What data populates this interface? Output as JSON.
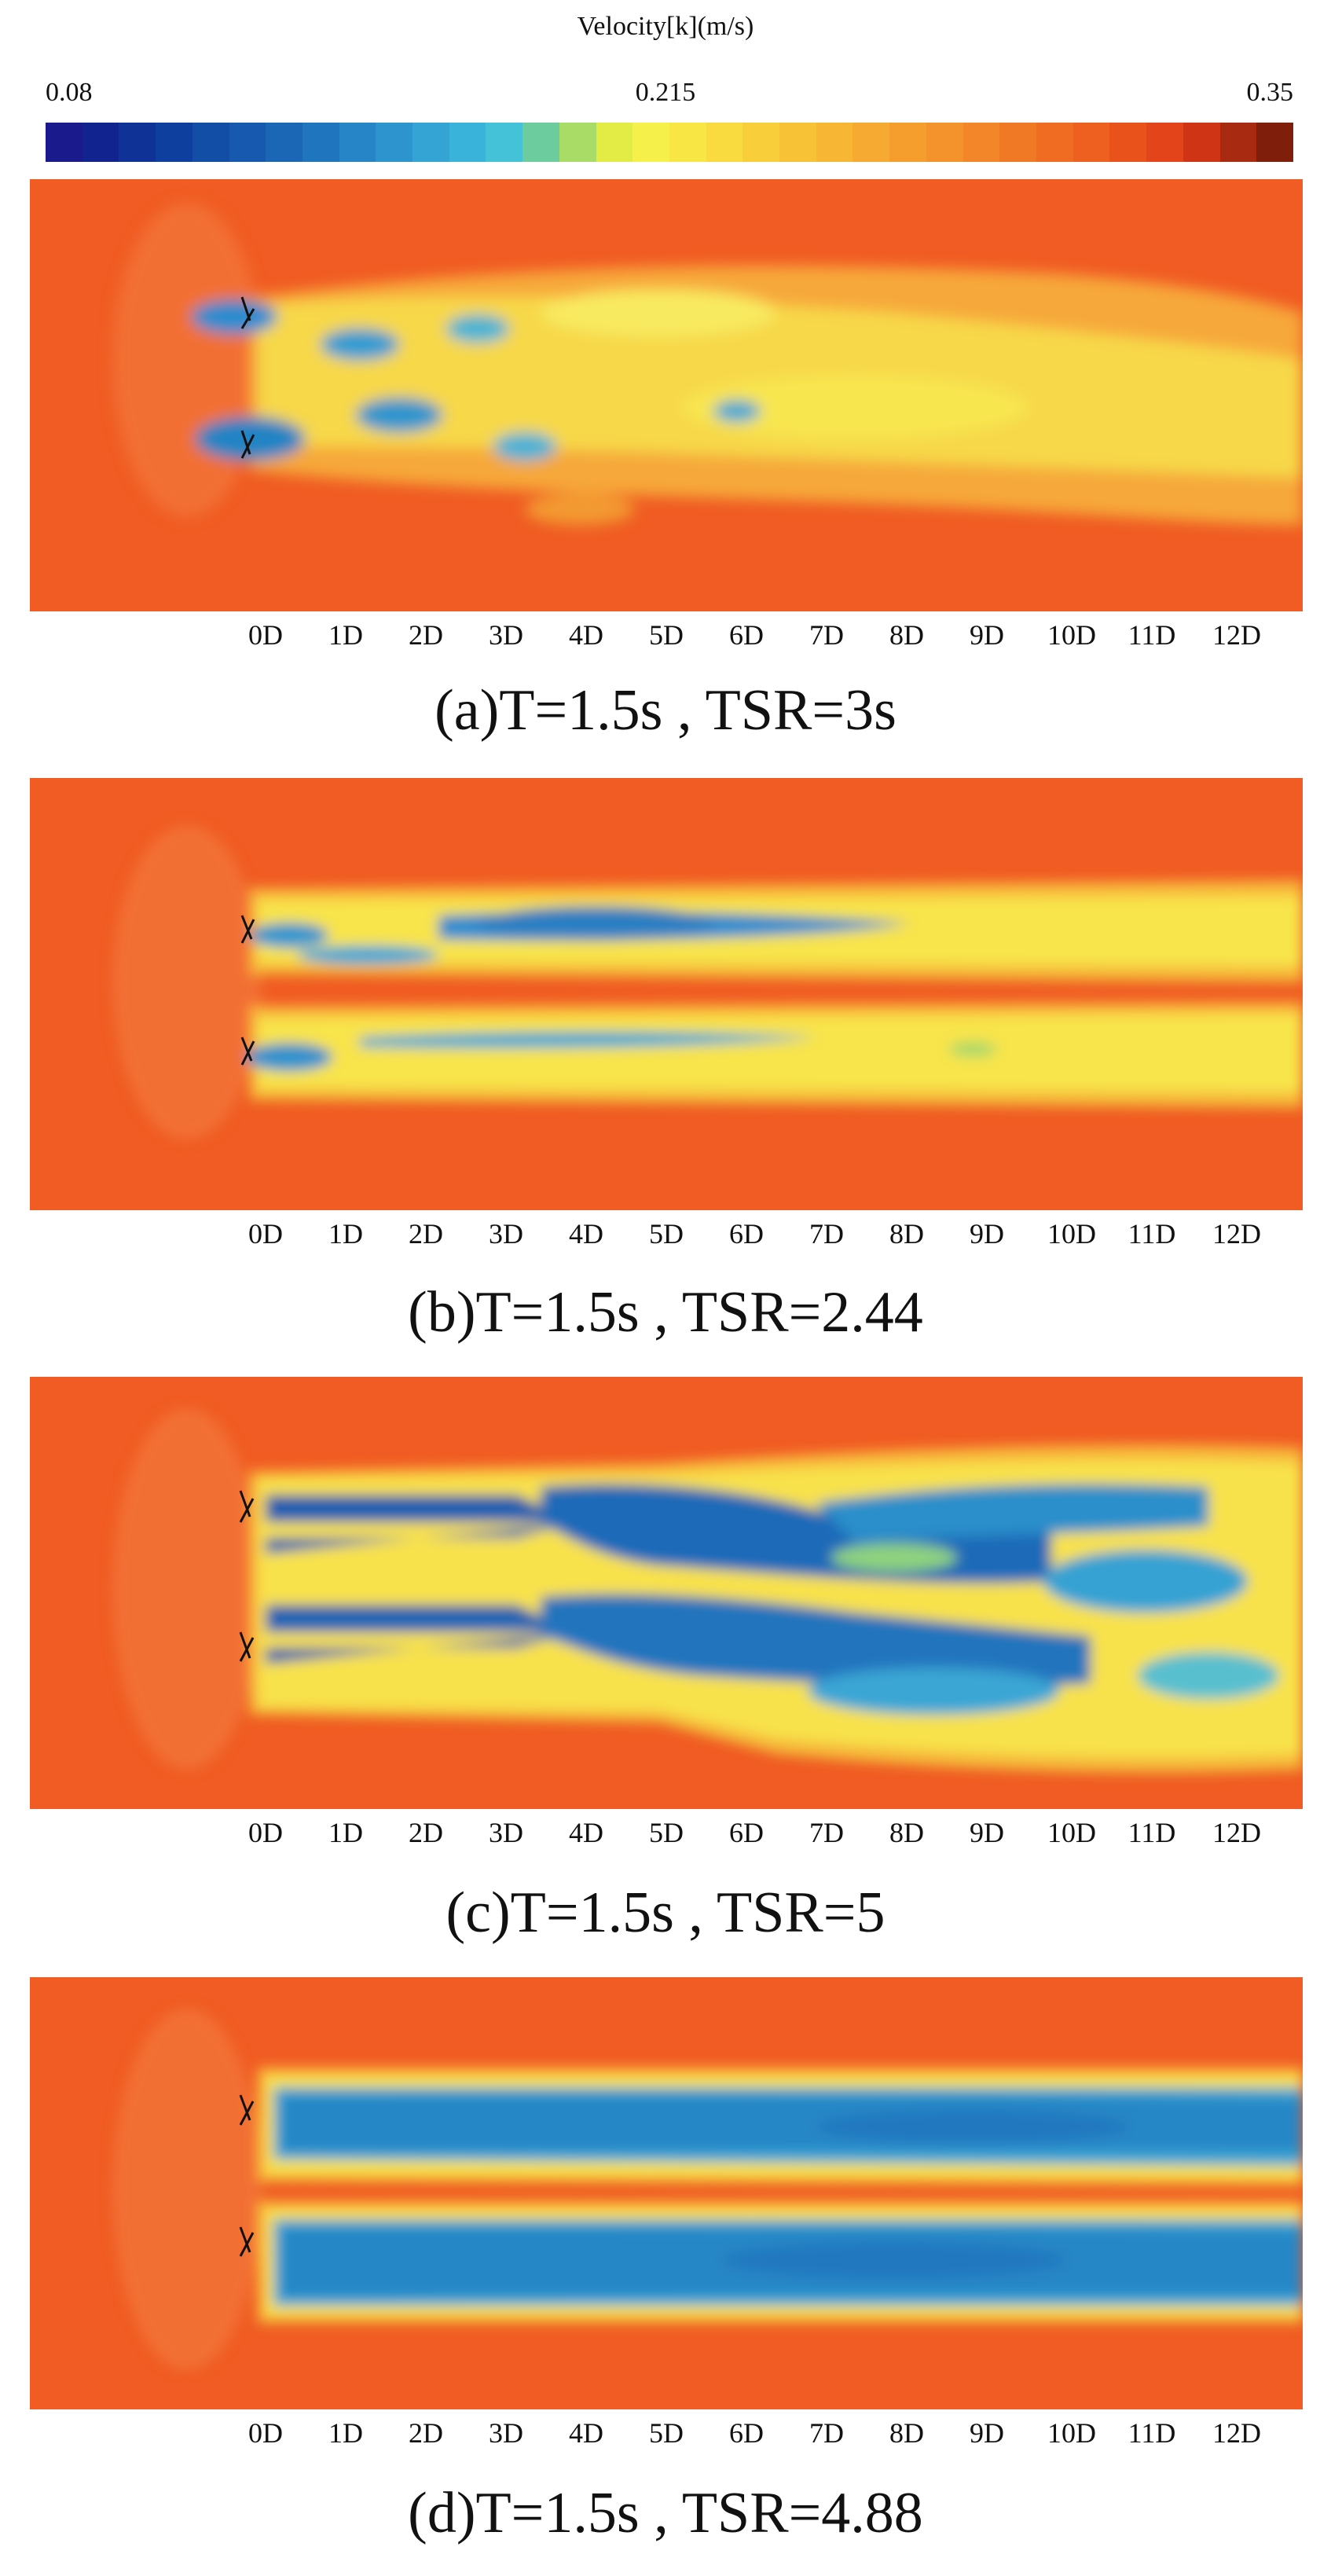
{
  "colorbar": {
    "title": "Velocity[k](m/s)",
    "min_label": "0.08",
    "mid_label": "0.215",
    "max_label": "0.35",
    "colors": [
      "#1a1a8c",
      "#10238f",
      "#0e3296",
      "#0f3f9e",
      "#124da6",
      "#1659ae",
      "#1b67b6",
      "#2076be",
      "#2685c6",
      "#2d94cd",
      "#33a4d4",
      "#39b3da",
      "#43c2d8",
      "#6dcc9e",
      "#a9dc67",
      "#e2ec45",
      "#f6f04a",
      "#f8e644",
      "#f9da3f",
      "#f9ce3b",
      "#f8c237",
      "#f7b634",
      "#f6aa31",
      "#f59e2e",
      "#f4922b",
      "#f28628",
      "#f07925",
      "#ef6c22",
      "#ed601f",
      "#ea521c",
      "#e34419",
      "#cf3414",
      "#a82a10",
      "#7e1e0b"
    ],
    "bg_color": "#f05c23"
  },
  "axis_ticks": [
    "0D",
    "1D",
    "2D",
    "3D",
    "4D",
    "5D",
    "6D",
    "7D",
    "8D",
    "9D",
    "10D",
    "11D",
    "12D"
  ],
  "panels": [
    {
      "caption": "(a)T=1.5s , TSR=3s"
    },
    {
      "caption": "(b)T=1.5s , TSR=2.44"
    },
    {
      "caption": "(c)T=1.5s , TSR=5"
    },
    {
      "caption": "(d)T=1.5s , TSR=4.88"
    }
  ]
}
